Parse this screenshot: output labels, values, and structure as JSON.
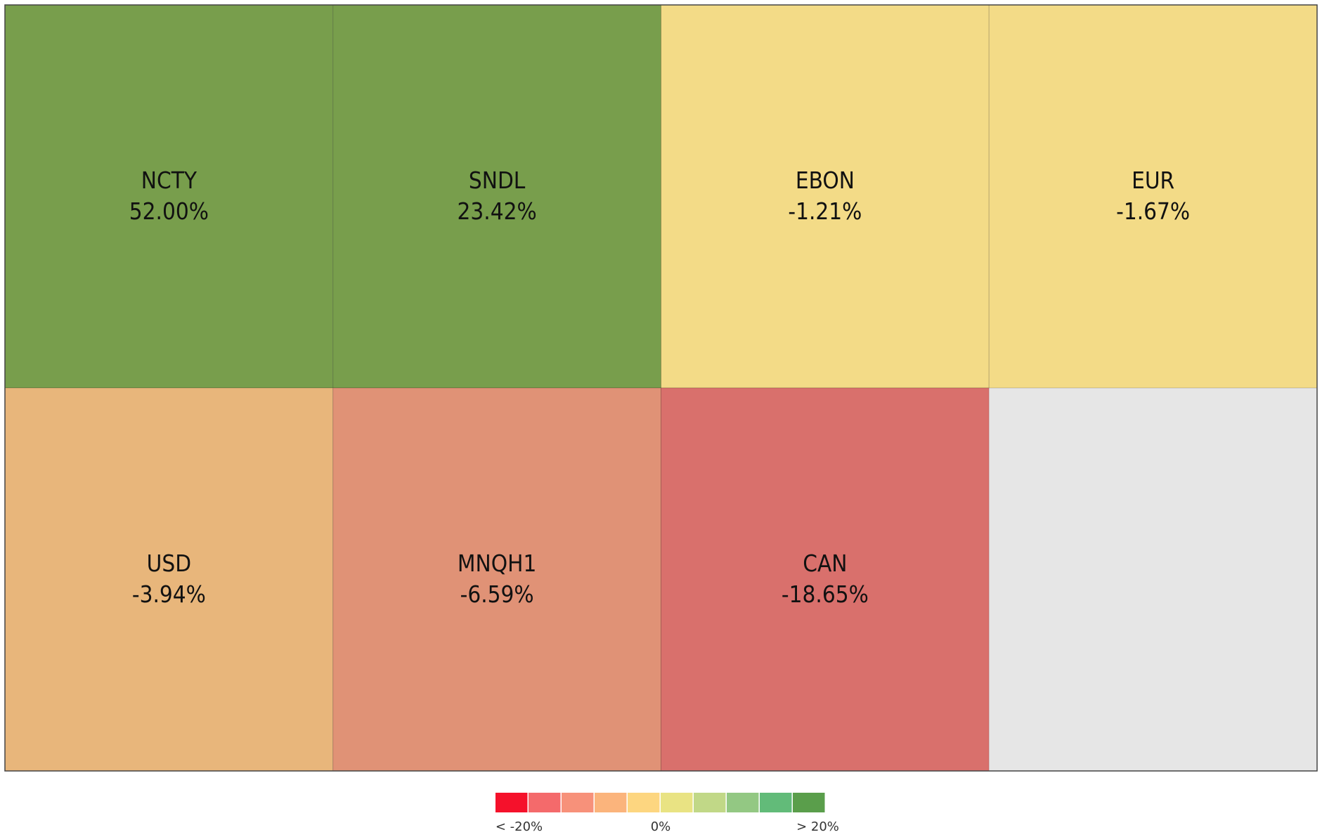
{
  "chart_data": {
    "type": "treemap",
    "categories": [
      "NCTY",
      "SNDL",
      "EBON",
      "EUR",
      "USD",
      "MNQH1",
      "CAN"
    ],
    "values": [
      52,
      23.42,
      -1.21,
      -1.67,
      -3.94,
      -6.59,
      -18.65
    ],
    "value_labels": [
      "52.00%",
      "23.42%",
      "-1.21%",
      "-1.67%",
      "-3.94%",
      "-6.59%",
      "-18.65%"
    ],
    "colors": [
      "#789e4c",
      "#789e4c",
      "#f3db87",
      "#f3db87",
      "#e8b67b",
      "#e09276",
      "#d9706c"
    ],
    "scale_colors": [
      "#f5112b",
      "#f46a6b",
      "#f7917a",
      "#fbb47c",
      "#fdd680",
      "#e9e383",
      "#c1d887",
      "#93c883",
      "#62bb79",
      "#5a9e4b"
    ],
    "legend_labels": [
      "< -20%",
      "0%",
      "> 20%"
    ]
  }
}
